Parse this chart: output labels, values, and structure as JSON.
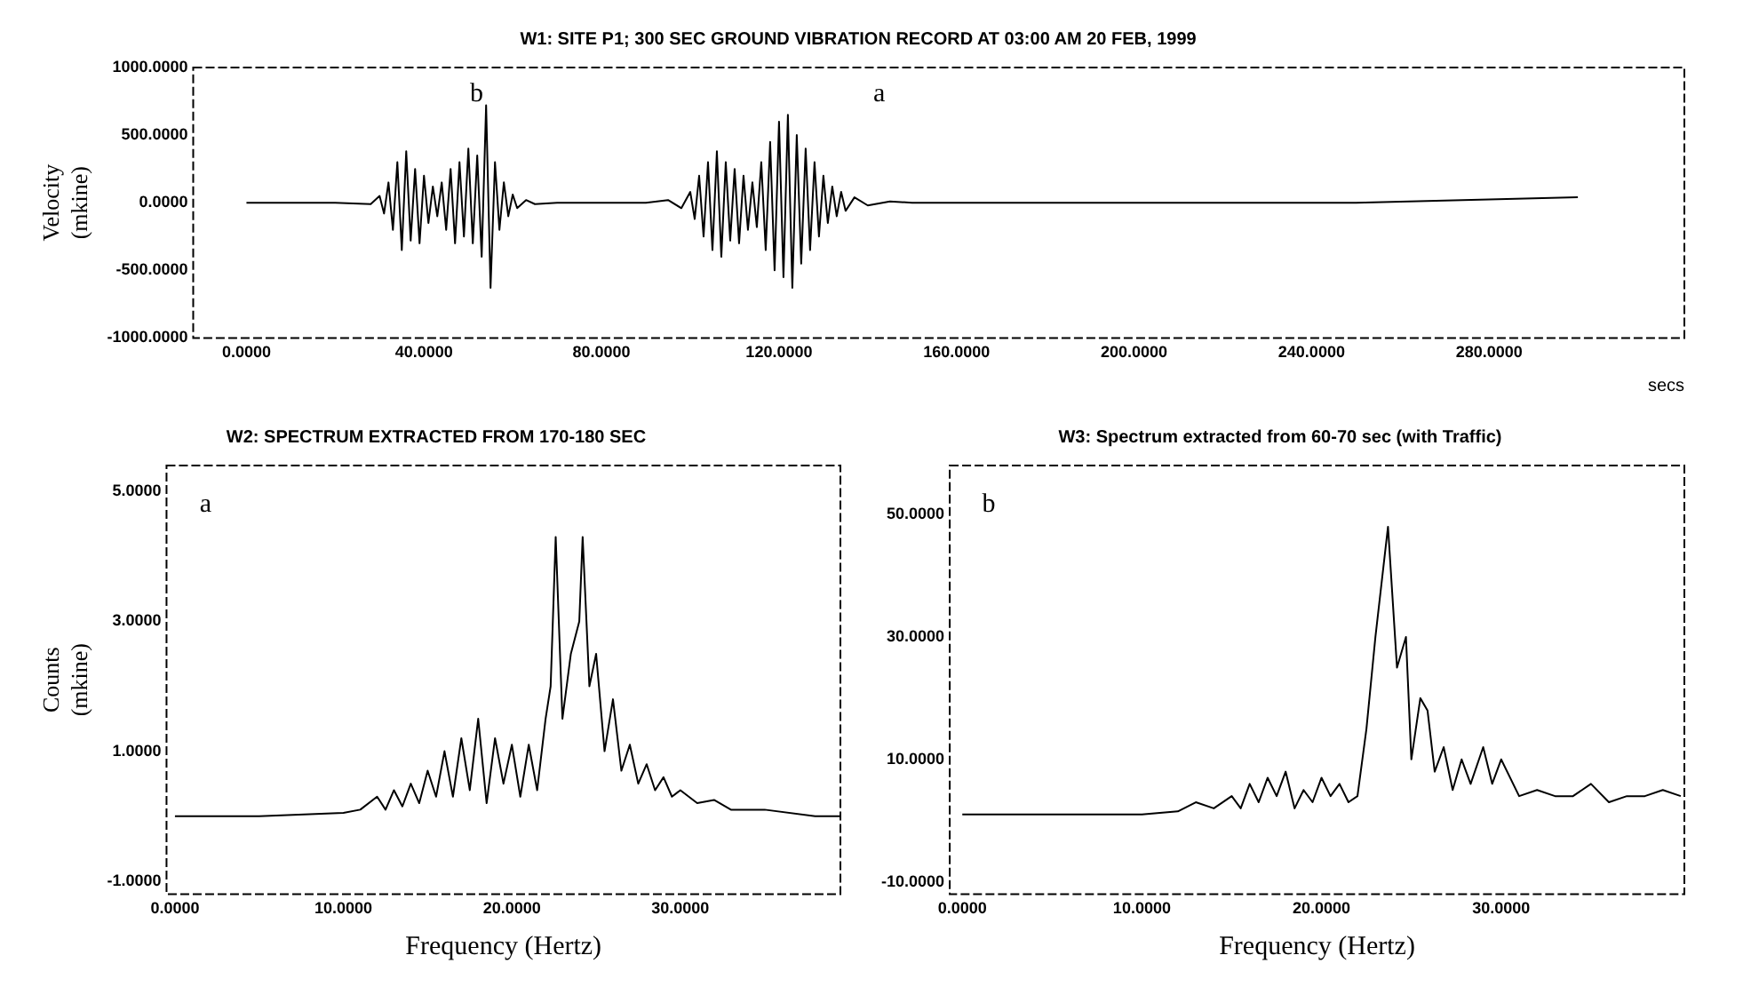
{
  "chart_data": [
    {
      "type": "line",
      "title": "W1: SITE P1; 300 SEC GROUND VIBRATION RECORD AT 03:00 AM 20 FEB, 1999",
      "xlabel": "secs",
      "ylabel": "Velocity (mkine)",
      "color": "#000000",
      "x": [
        0,
        10,
        20,
        28,
        30,
        31,
        32,
        33,
        34,
        35,
        36,
        37,
        38,
        39,
        40,
        41,
        42,
        43,
        44,
        45,
        46,
        47,
        48,
        49,
        50,
        51,
        52,
        53,
        54,
        55,
        56,
        57,
        58,
        59,
        60,
        61,
        63,
        65,
        70,
        90,
        95,
        98,
        100,
        101,
        102,
        103,
        104,
        105,
        106,
        107,
        108,
        109,
        110,
        111,
        112,
        113,
        114,
        115,
        116,
        117,
        118,
        119,
        120,
        121,
        122,
        123,
        124,
        125,
        126,
        127,
        128,
        129,
        130,
        131,
        132,
        133,
        134,
        135,
        137,
        140,
        145,
        150,
        200,
        250,
        300
      ],
      "values": [
        0,
        0,
        0,
        -10,
        50,
        -80,
        150,
        -200,
        300,
        -350,
        380,
        -280,
        250,
        -300,
        200,
        -150,
        120,
        -100,
        150,
        -200,
        250,
        -300,
        300,
        -250,
        400,
        -300,
        350,
        -400,
        720,
        -630,
        300,
        -200,
        150,
        -100,
        60,
        -40,
        20,
        -10,
        0,
        0,
        20,
        -40,
        80,
        -120,
        200,
        -250,
        300,
        -350,
        380,
        -400,
        300,
        -280,
        250,
        -300,
        200,
        -200,
        150,
        -180,
        300,
        -350,
        450,
        -500,
        600,
        -550,
        650,
        -630,
        500,
        -450,
        400,
        -350,
        300,
        -250,
        200,
        -150,
        120,
        -100,
        80,
        -60,
        40,
        -20,
        10,
        0,
        0,
        0,
        40
      ],
      "xlim": [
        -12,
        324
      ],
      "ylim": [
        -1000,
        1000
      ],
      "xticks": [
        {
          "value": 0,
          "label": "0.0000"
        },
        {
          "value": 40,
          "label": "40.0000"
        },
        {
          "value": 80,
          "label": "80.0000"
        },
        {
          "value": 120,
          "label": "120.0000"
        },
        {
          "value": 160,
          "label": "160.0000"
        },
        {
          "value": 200,
          "label": "200.0000"
        },
        {
          "value": 240,
          "label": "240.0000"
        },
        {
          "value": 280,
          "label": "280.0000"
        }
      ],
      "yticks": [
        {
          "value": -1000,
          "label": "-1000.0000"
        },
        {
          "value": -500,
          "label": "-500.0000"
        },
        {
          "value": 0,
          "label": "0.0000"
        },
        {
          "value": 500,
          "label": "500.0000"
        },
        {
          "value": 1000,
          "label": "1000.0000"
        }
      ],
      "annotations": [
        "b",
        "a"
      ]
    },
    {
      "type": "line",
      "title": "W2: SPECTRUM EXTRACTED FROM 170-180 SEC",
      "xlabel": "Frequency (Hertz)",
      "ylabel": "Counts (mkine)",
      "color": "#000000",
      "x": [
        0,
        5,
        10,
        11,
        12,
        12.5,
        13,
        13.5,
        14,
        14.5,
        15,
        15.5,
        16,
        16.5,
        17,
        17.5,
        18,
        18.5,
        19,
        19.5,
        20,
        20.5,
        21,
        21.5,
        22,
        22.3,
        22.6,
        23,
        23.5,
        24,
        24.2,
        24.6,
        25,
        25.5,
        26,
        26.5,
        27,
        27.5,
        28,
        28.5,
        29,
        29.5,
        30,
        31,
        32,
        33,
        35,
        38,
        39.5
      ],
      "values": [
        0,
        0,
        0.05,
        0.1,
        0.3,
        0.1,
        0.4,
        0.15,
        0.5,
        0.2,
        0.7,
        0.3,
        1.0,
        0.3,
        1.2,
        0.4,
        1.5,
        0.2,
        1.2,
        0.5,
        1.1,
        0.3,
        1.1,
        0.4,
        1.5,
        2.0,
        4.3,
        1.5,
        2.5,
        3.0,
        4.3,
        2.0,
        2.5,
        1.0,
        1.8,
        0.7,
        1.1,
        0.5,
        0.8,
        0.4,
        0.6,
        0.3,
        0.4,
        0.2,
        0.25,
        0.1,
        0.1,
        0,
        0
      ],
      "xlim": [
        -0.5,
        39.5
      ],
      "ylim": [
        -1.2,
        5.4
      ],
      "xticks": [
        {
          "value": 0,
          "label": "0.0000"
        },
        {
          "value": 10,
          "label": "10.0000"
        },
        {
          "value": 20,
          "label": "20.0000"
        },
        {
          "value": 30,
          "label": "30.0000"
        }
      ],
      "yticks": [
        {
          "value": -1,
          "label": "-1.0000"
        },
        {
          "value": 1,
          "label": "1.0000"
        },
        {
          "value": 3,
          "label": "3.0000"
        },
        {
          "value": 5,
          "label": "5.0000"
        }
      ],
      "annotations": [
        "a"
      ]
    },
    {
      "type": "line",
      "title": "W3: Spectrum extracted from 60-70 sec (with Traffic)",
      "xlabel": "Frequency (Hertz)",
      "color": "#000000",
      "x": [
        0,
        10,
        12,
        13,
        14,
        15,
        15.5,
        16,
        16.5,
        17,
        17.5,
        18,
        18.5,
        19,
        19.5,
        20,
        20.5,
        21,
        21.5,
        22,
        22.5,
        23,
        23.7,
        24.2,
        24.7,
        25,
        25.5,
        25.9,
        26.3,
        26.8,
        27.3,
        27.8,
        28.3,
        29,
        29.5,
        30,
        31,
        32,
        33,
        34,
        35,
        36,
        37,
        38,
        39,
        40
      ],
      "values": [
        1,
        1,
        1.5,
        3,
        2,
        4,
        2,
        6,
        3,
        7,
        4,
        8,
        2,
        5,
        3,
        7,
        4,
        6,
        3,
        4,
        15,
        30,
        48,
        25,
        30,
        10,
        20,
        18,
        8,
        12,
        5,
        10,
        6,
        12,
        6,
        10,
        4,
        5,
        4,
        4,
        6,
        3,
        4,
        4,
        5,
        4
      ],
      "xlim": [
        -0.7,
        40.2
      ],
      "ylim": [
        -12,
        58
      ],
      "xticks": [
        {
          "value": 0,
          "label": "0.0000"
        },
        {
          "value": 10,
          "label": "10.0000"
        },
        {
          "value": 20,
          "label": "20.0000"
        },
        {
          "value": 30,
          "label": "30.0000"
        }
      ],
      "yticks": [
        {
          "value": -10,
          "label": "-10.0000"
        },
        {
          "value": 10,
          "label": "10.0000"
        },
        {
          "value": 30,
          "label": "30.0000"
        },
        {
          "value": 50,
          "label": "50.0000"
        }
      ],
      "annotations": [
        "b"
      ]
    }
  ]
}
